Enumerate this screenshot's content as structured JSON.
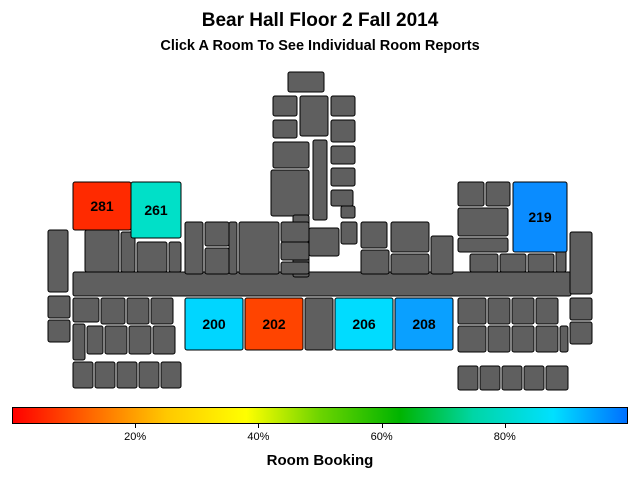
{
  "title": "Bear Hall Floor 2 Fall 2014",
  "subtitle": "Click A Room To See Individual Room Reports",
  "legend": {
    "title": "Room Booking",
    "ticks": [
      "20%",
      "40%",
      "60%",
      "80%"
    ],
    "tick_values": [
      20,
      40,
      60,
      80
    ],
    "range": [
      0,
      100
    ],
    "colors": [
      "#ff0000",
      "#ff6a00",
      "#ffc800",
      "#ffff00",
      "#6cd400",
      "#00b400",
      "#00d6a6",
      "#00e0ff",
      "#0070ff"
    ]
  },
  "rooms": [
    {
      "label": "281",
      "color": "#ff2a00",
      "booking": 5
    },
    {
      "label": "261",
      "color": "#00e0c8",
      "booking": 75
    },
    {
      "label": "219",
      "color": "#0a8cff",
      "booking": 93
    },
    {
      "label": "200",
      "color": "#00d6ff",
      "booking": 84
    },
    {
      "label": "202",
      "color": "#ff4400",
      "booking": 10
    },
    {
      "label": "206",
      "color": "#00dcff",
      "booking": 83
    },
    {
      "label": "208",
      "color": "#0aa0ff",
      "booking": 90
    }
  ],
  "unused_color": "#5f5f5f"
}
